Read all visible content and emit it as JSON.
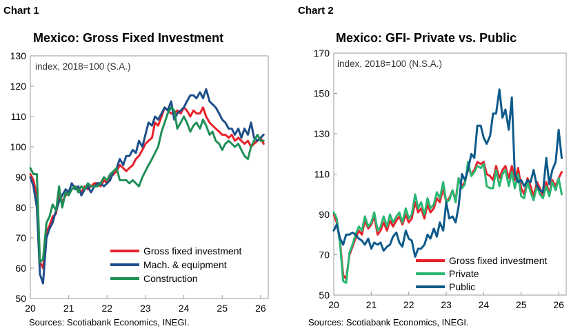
{
  "charts": [
    {
      "panel_label": "Chart 1",
      "title": "Mexico: Gross Fixed Investment",
      "source": "Sources: Scotiabank Economics, INEGI."
    },
    {
      "panel_label": "Chart 2",
      "title": "Mexico: GFI- Private vs. Public",
      "source": "Sources: Scotiabank Economics, INEGI."
    }
  ],
  "chart_data": [
    {
      "type": "line",
      "title": "Mexico: Gross Fixed Investment",
      "annotation": "index, 2018=100 (S.A.)",
      "xlim": [
        20,
        26.2
      ],
      "ylim": [
        50,
        130
      ],
      "x_ticks": [
        "20",
        "21",
        "22",
        "23",
        "24",
        "25",
        "26"
      ],
      "y_ticks": [
        "50",
        "60",
        "70",
        "80",
        "90",
        "100",
        "110",
        "120",
        "130"
      ],
      "legend_position": "bottom-right",
      "grid": false,
      "series": [
        {
          "name": "Gross fixed investment",
          "color": "#e8202a",
          "x": [
            20.0,
            20.08,
            20.17,
            20.25,
            20.33,
            20.42,
            20.5,
            20.58,
            20.67,
            20.75,
            20.83,
            20.92,
            21.0,
            21.08,
            21.17,
            21.25,
            21.33,
            21.42,
            21.5,
            21.58,
            21.67,
            21.75,
            21.83,
            21.92,
            22.0,
            22.08,
            22.17,
            22.25,
            22.33,
            22.42,
            22.5,
            22.58,
            22.67,
            22.75,
            22.83,
            22.92,
            23.0,
            23.08,
            23.17,
            23.25,
            23.33,
            23.42,
            23.5,
            23.58,
            23.67,
            23.75,
            23.83,
            23.92,
            24.0,
            24.08,
            24.17,
            24.25,
            24.33,
            24.42,
            24.5,
            24.58,
            24.67,
            24.75,
            24.83,
            24.92,
            25.0,
            25.08,
            25.17,
            25.25,
            25.33,
            25.42,
            25.5,
            25.58,
            25.67,
            25.75,
            25.83,
            25.92,
            26.0,
            26.08
          ],
          "y": [
            91,
            89,
            84,
            62,
            60,
            72,
            74,
            77,
            78,
            84,
            82,
            84,
            85,
            86,
            87,
            86,
            85,
            87,
            86,
            87,
            88,
            88,
            87,
            89,
            88,
            90,
            91,
            92,
            94,
            93,
            92,
            93,
            94,
            96,
            97,
            99,
            101,
            102,
            103,
            108,
            107,
            110,
            113,
            112,
            111,
            111,
            112,
            111,
            113,
            112,
            110,
            112,
            111,
            111,
            113,
            110,
            108,
            107,
            106,
            105,
            104,
            104,
            103,
            104,
            102,
            103,
            102,
            101,
            102,
            100,
            101,
            102,
            103,
            101
          ]
        },
        {
          "name": "Mach. & equipment",
          "color": "#1d4e89",
          "x": [
            20.0,
            20.08,
            20.17,
            20.25,
            20.33,
            20.42,
            20.5,
            20.58,
            20.67,
            20.75,
            20.83,
            20.92,
            21.0,
            21.08,
            21.17,
            21.25,
            21.33,
            21.42,
            21.5,
            21.58,
            21.67,
            21.75,
            21.83,
            21.92,
            22.0,
            22.08,
            22.17,
            22.25,
            22.33,
            22.42,
            22.5,
            22.58,
            22.67,
            22.75,
            22.83,
            22.92,
            23.0,
            23.08,
            23.17,
            23.25,
            23.33,
            23.42,
            23.5,
            23.58,
            23.67,
            23.75,
            23.83,
            23.92,
            24.0,
            24.08,
            24.17,
            24.25,
            24.33,
            24.42,
            24.5,
            24.58,
            24.67,
            24.75,
            24.83,
            24.92,
            25.0,
            25.08,
            25.17,
            25.25,
            25.33,
            25.42,
            25.5,
            25.58,
            25.67,
            25.75,
            25.83,
            25.92,
            26.0,
            26.08
          ],
          "y": [
            90,
            87,
            80,
            58,
            55,
            70,
            73,
            75,
            79,
            82,
            84,
            86,
            85,
            88,
            86,
            87,
            84,
            86,
            87,
            85,
            87,
            88,
            88,
            87,
            88,
            89,
            92,
            93,
            96,
            94,
            97,
            97,
            99,
            98,
            102,
            100,
            104,
            108,
            107,
            110,
            109,
            111,
            113,
            112,
            115,
            109,
            111,
            112,
            113,
            115,
            117,
            117,
            116,
            118,
            116,
            119,
            115,
            114,
            113,
            111,
            109,
            108,
            106,
            106,
            104,
            106,
            103,
            106,
            104,
            108,
            103,
            102,
            103,
            104
          ]
        },
        {
          "name": "Construction",
          "color": "#1f8f57",
          "x": [
            20.0,
            20.08,
            20.17,
            20.25,
            20.33,
            20.42,
            20.5,
            20.58,
            20.67,
            20.75,
            20.83,
            20.92,
            21.0,
            21.08,
            21.17,
            21.25,
            21.33,
            21.42,
            21.5,
            21.58,
            21.67,
            21.75,
            21.83,
            21.92,
            22.0,
            22.08,
            22.17,
            22.25,
            22.33,
            22.42,
            22.5,
            22.58,
            22.67,
            22.75,
            22.83,
            22.92,
            23.0,
            23.08,
            23.17,
            23.25,
            23.33,
            23.42,
            23.5,
            23.58,
            23.67,
            23.75,
            23.83,
            23.92,
            24.0,
            24.08,
            24.17,
            24.25,
            24.33,
            24.42,
            24.5,
            24.58,
            24.67,
            24.75,
            24.83,
            24.92,
            25.0,
            25.08,
            25.17,
            25.25,
            25.33,
            25.42,
            25.5,
            25.58,
            25.67,
            25.75,
            25.83,
            25.92,
            26.0,
            26.08
          ],
          "y": [
            93,
            91,
            91,
            62,
            63,
            75,
            77,
            81,
            79,
            87,
            80,
            85,
            84,
            86,
            87,
            85,
            87,
            86,
            88,
            87,
            87,
            87,
            88,
            90,
            89,
            91,
            92,
            93,
            89,
            89,
            89,
            88,
            89,
            88,
            87,
            90,
            92,
            94,
            96,
            98,
            100,
            105,
            108,
            111,
            113,
            112,
            106,
            108,
            110,
            108,
            105,
            107,
            108,
            106,
            109,
            107,
            104,
            105,
            102,
            101,
            99,
            101,
            102,
            101,
            100,
            101,
            99,
            97,
            96,
            100,
            102,
            104,
            102,
            102
          ]
        }
      ]
    },
    {
      "type": "line",
      "title": "Mexico: GFI- Private vs. Public",
      "annotation": "index, 2018=100 (N.S.A.)",
      "xlim": [
        20,
        26.2
      ],
      "ylim": [
        50,
        170
      ],
      "x_ticks": [
        "20",
        "21",
        "22",
        "23",
        "24",
        "25",
        "26"
      ],
      "y_ticks": [
        "50",
        "70",
        "90",
        "110",
        "130",
        "150",
        "170"
      ],
      "legend_position": "bottom-right",
      "grid": false,
      "series": [
        {
          "name": "Gross fixed investment",
          "color": "#e8202a",
          "x": [
            20.0,
            20.08,
            20.17,
            20.25,
            20.33,
            20.42,
            20.5,
            20.58,
            20.67,
            20.75,
            20.83,
            20.92,
            21.0,
            21.08,
            21.17,
            21.25,
            21.33,
            21.42,
            21.5,
            21.58,
            21.67,
            21.75,
            21.83,
            21.92,
            22.0,
            22.08,
            22.17,
            22.25,
            22.33,
            22.42,
            22.5,
            22.58,
            22.67,
            22.75,
            22.83,
            22.92,
            23.0,
            23.08,
            23.17,
            23.25,
            23.33,
            23.42,
            23.5,
            23.58,
            23.67,
            23.75,
            23.83,
            23.92,
            24.0,
            24.08,
            24.17,
            24.25,
            24.33,
            24.42,
            24.5,
            24.58,
            24.67,
            24.75,
            24.83,
            24.92,
            25.0,
            25.08,
            25.17,
            25.25,
            25.33,
            25.42,
            25.5,
            25.58,
            25.67,
            25.75,
            25.83,
            25.92,
            26.0,
            26.08
          ],
          "y": [
            90,
            86,
            76,
            60,
            58,
            70,
            74,
            78,
            82,
            80,
            87,
            83,
            85,
            89,
            80,
            82,
            86,
            82,
            87,
            84,
            87,
            89,
            85,
            90,
            86,
            88,
            96,
            91,
            93,
            88,
            95,
            91,
            93,
            98,
            96,
            103,
            96,
            98,
            102,
            97,
            108,
            104,
            106,
            113,
            110,
            112,
            116,
            115,
            116,
            110,
            109,
            107,
            114,
            108,
            112,
            114,
            108,
            114,
            107,
            113,
            103,
            100,
            108,
            104,
            99,
            106,
            103,
            99,
            106,
            100,
            107,
            104,
            108,
            111
          ]
        },
        {
          "name": "Private",
          "color": "#2bb673",
          "x": [
            20.0,
            20.08,
            20.17,
            20.25,
            20.33,
            20.42,
            20.5,
            20.58,
            20.67,
            20.75,
            20.83,
            20.92,
            21.0,
            21.08,
            21.17,
            21.25,
            21.33,
            21.42,
            21.5,
            21.58,
            21.67,
            21.75,
            21.83,
            21.92,
            22.0,
            22.08,
            22.17,
            22.25,
            22.33,
            22.42,
            22.5,
            22.58,
            22.67,
            22.75,
            22.83,
            22.92,
            23.0,
            23.08,
            23.17,
            23.25,
            23.33,
            23.42,
            23.5,
            23.58,
            23.67,
            23.75,
            23.83,
            23.92,
            24.0,
            24.08,
            24.17,
            24.25,
            24.33,
            24.42,
            24.5,
            24.58,
            24.67,
            24.75,
            24.83,
            24.92,
            25.0,
            25.08,
            25.17,
            25.25,
            25.33,
            25.42,
            25.5,
            25.58,
            25.67,
            25.75,
            25.83,
            25.92,
            26.0,
            26.08
          ],
          "y": [
            91,
            88,
            75,
            57,
            56,
            71,
            75,
            80,
            84,
            82,
            89,
            84,
            86,
            91,
            82,
            84,
            89,
            84,
            90,
            86,
            89,
            91,
            86,
            93,
            88,
            90,
            100,
            93,
            96,
            90,
            98,
            93,
            95,
            101,
            98,
            106,
            96,
            97,
            102,
            96,
            108,
            103,
            105,
            116,
            109,
            111,
            114,
            113,
            115,
            104,
            103,
            103,
            112,
            104,
            110,
            112,
            104,
            111,
            103,
            110,
            99,
            98,
            106,
            101,
            97,
            104,
            100,
            98,
            104,
            99,
            106,
            102,
            108,
            100
          ]
        },
        {
          "name": "Public",
          "color": "#0d5a8a",
          "x": [
            20.0,
            20.08,
            20.17,
            20.25,
            20.33,
            20.42,
            20.5,
            20.58,
            20.67,
            20.75,
            20.83,
            20.92,
            21.0,
            21.08,
            21.17,
            21.25,
            21.33,
            21.42,
            21.5,
            21.58,
            21.67,
            21.75,
            21.83,
            21.92,
            22.0,
            22.08,
            22.17,
            22.25,
            22.33,
            22.42,
            22.5,
            22.58,
            22.67,
            22.75,
            22.83,
            22.92,
            23.0,
            23.08,
            23.17,
            23.25,
            23.33,
            23.42,
            23.5,
            23.58,
            23.67,
            23.75,
            23.83,
            23.92,
            24.0,
            24.08,
            24.17,
            24.25,
            24.33,
            24.42,
            24.5,
            24.58,
            24.67,
            24.75,
            24.83,
            24.92,
            25.0,
            25.08,
            25.17,
            25.25,
            25.33,
            25.42,
            25.5,
            25.58,
            25.67,
            25.75,
            25.83,
            25.92,
            26.0,
            26.08
          ],
          "y": [
            82,
            85,
            78,
            75,
            80,
            80,
            81,
            80,
            78,
            77,
            75,
            78,
            73,
            76,
            75,
            76,
            72,
            74,
            75,
            79,
            81,
            76,
            74,
            82,
            78,
            77,
            69,
            73,
            73,
            75,
            80,
            78,
            83,
            79,
            86,
            82,
            96,
            88,
            89,
            86,
            94,
            110,
            107,
            112,
            120,
            118,
            134,
            134,
            128,
            125,
            129,
            140,
            140,
            152,
            138,
            142,
            132,
            148,
            110,
            106,
            107,
            104,
            107,
            106,
            112,
            104,
            102,
            101,
            118,
            105,
            112,
            116,
            132,
            118
          ]
        }
      ]
    }
  ]
}
